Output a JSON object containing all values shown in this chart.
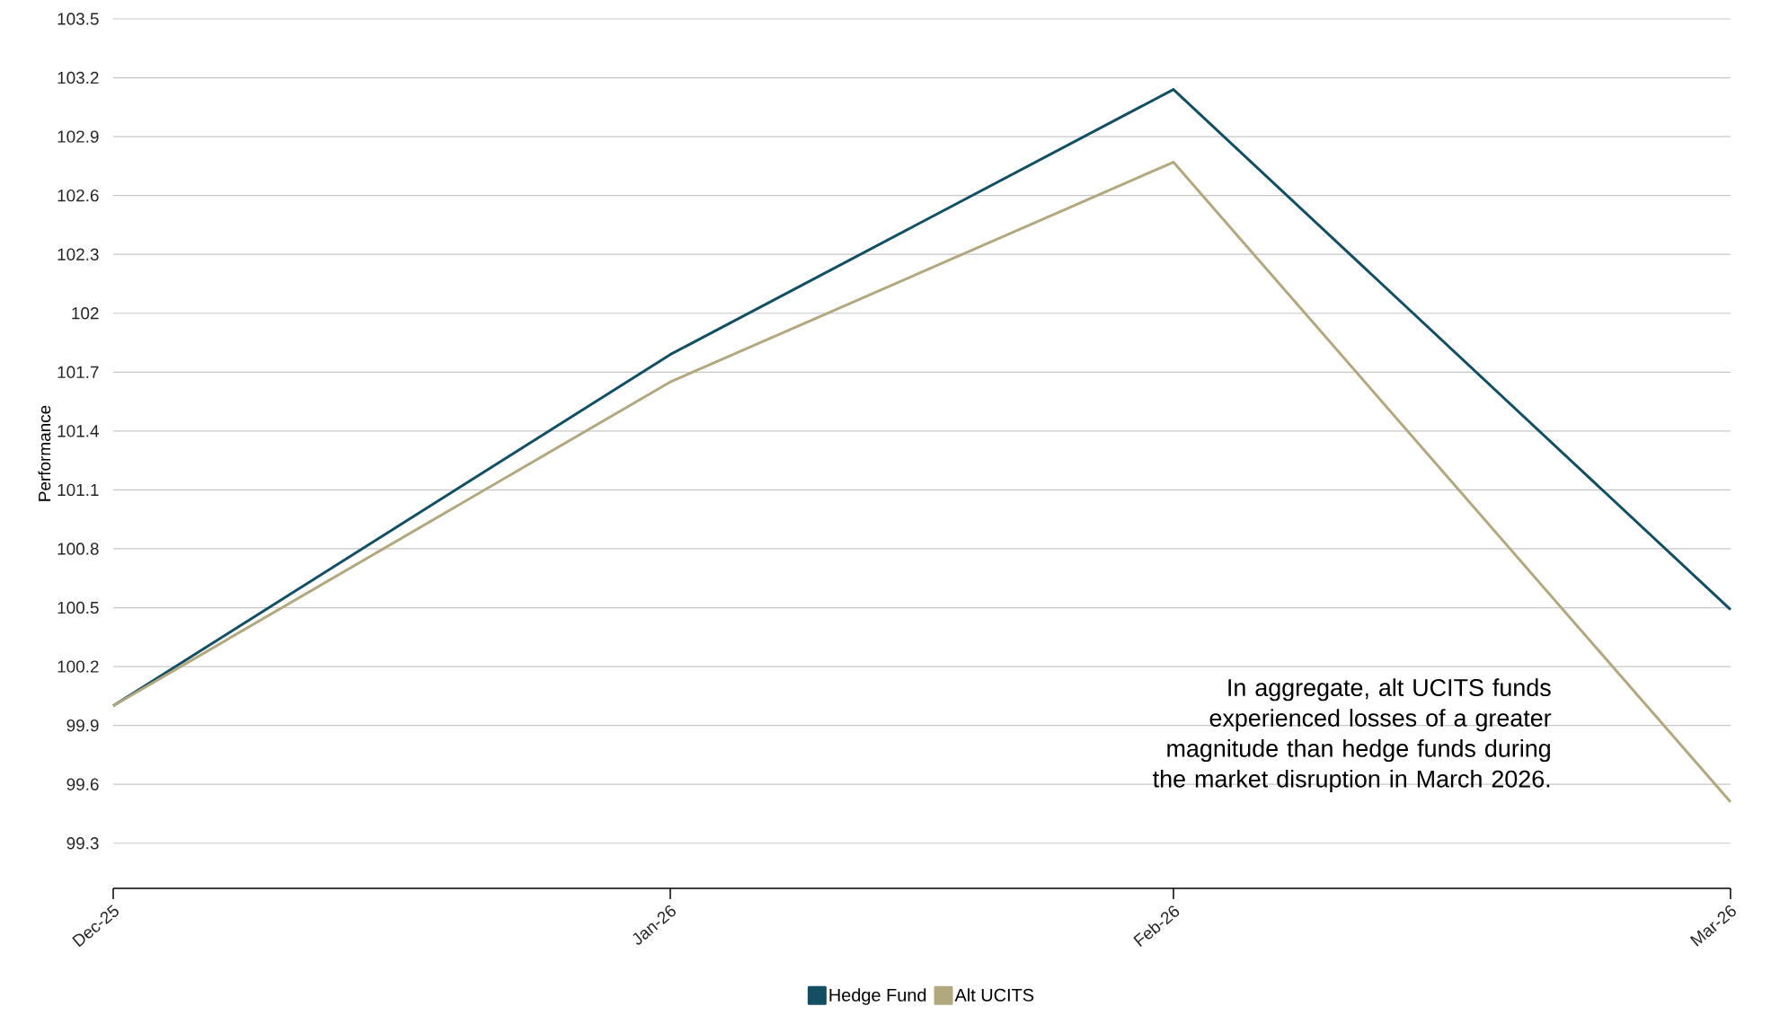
{
  "chart_data": {
    "type": "line",
    "ylabel": "Performance",
    "x": [
      "2025-12-31",
      "2026-01-31",
      "2026-02-28",
      "2026-03-31"
    ],
    "xlim": [
      "2025-12-31",
      "2026-03-31"
    ],
    "xticks": [
      {
        "value": "2025-12-31",
        "label": "Dec-25"
      },
      {
        "value": "2026-01-31",
        "label": "Jan-26"
      },
      {
        "value": "2026-02-28",
        "label": "Feb-26"
      },
      {
        "value": "2026-03-31",
        "label": "Mar-26"
      }
    ],
    "ylim": [
      99.07,
      103.5
    ],
    "yticks": [
      99.3,
      99.6,
      99.9,
      100.2,
      100.5,
      100.8,
      101.1,
      101.4,
      101.7,
      102,
      102.3,
      102.6,
      102.9,
      103.2,
      103.5
    ],
    "series": [
      {
        "name": "Hedge Fund",
        "color": "#124f63",
        "values": [
          100.0,
          101.79,
          103.14,
          100.49
        ]
      },
      {
        "name": "Alt UCITS",
        "color": "#b2a87f",
        "values": [
          100.0,
          101.65,
          102.77,
          99.51
        ]
      }
    ],
    "grid": "y",
    "legend": "bottom",
    "marker": "none",
    "line_style": "solid",
    "annotations": [
      "In aggregate, alt UCITS funds experienced losses of a greater magnitude than hedge funds during the market disruption in March 2026."
    ]
  }
}
